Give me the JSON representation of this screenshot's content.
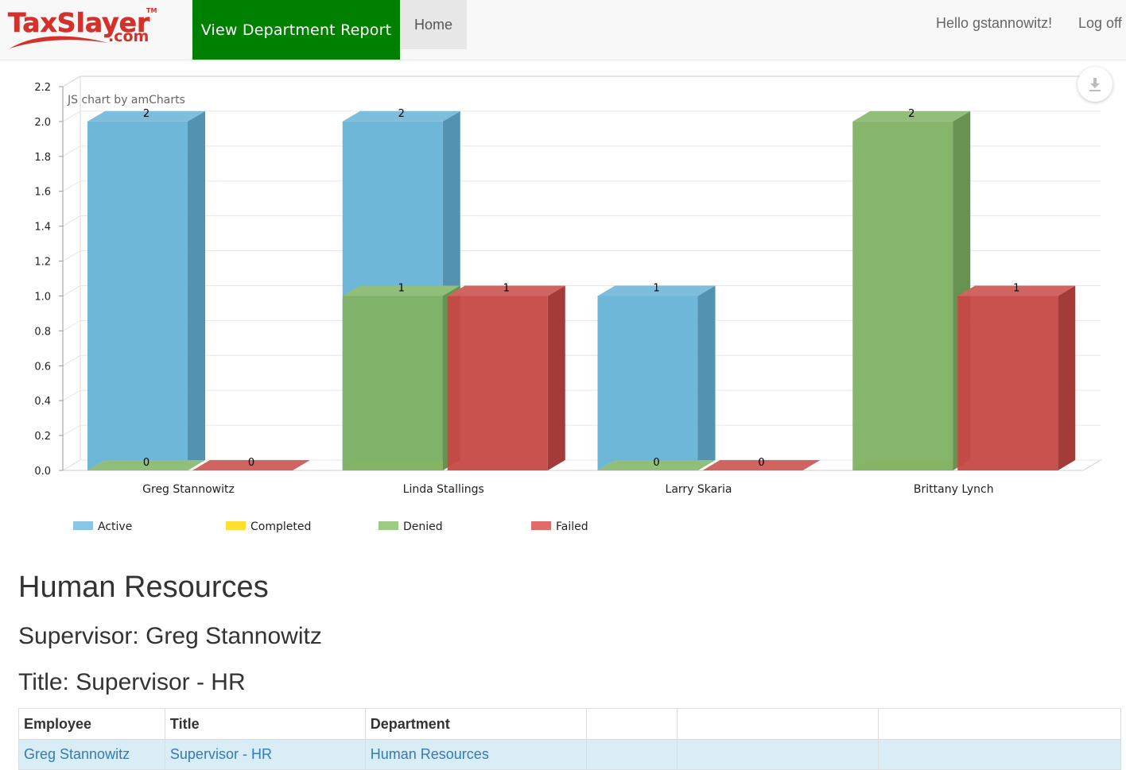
{
  "nav": {
    "brand_main": "TaxSlayer",
    "brand_tm": "TM",
    "brand_sub": ".com",
    "report_link": "View Department Report",
    "home_link": "Home",
    "greeting": "Hello gstannowitz!",
    "logoff": "Log off"
  },
  "chart_data": {
    "type": "bar",
    "watermark": "JS chart by amCharts",
    "categories": [
      "Greg Stannowitz",
      "Linda Stallings",
      "Larry Skaria",
      "Brittany Lynch"
    ],
    "series": [
      {
        "name": "Active",
        "color": "#67b3d7",
        "values": [
          2,
          2,
          1,
          0
        ]
      },
      {
        "name": "Completed",
        "color": "#fcd934",
        "values": [
          0,
          0,
          0,
          0
        ]
      },
      {
        "name": "Denied",
        "color": "#7eb263",
        "values": [
          0,
          1,
          0,
          2
        ]
      },
      {
        "name": "Failed",
        "color": "#c74944",
        "values": [
          0,
          1,
          0,
          1
        ]
      }
    ],
    "legend": [
      {
        "name": "Active",
        "color": "#8ac7e6"
      },
      {
        "name": "Completed",
        "color": "#fddf32"
      },
      {
        "name": "Denied",
        "color": "#9ccb86"
      },
      {
        "name": "Failed",
        "color": "#e06c69"
      }
    ],
    "data_labels": [
      {
        "category": 0,
        "series": "Active",
        "value": "2"
      },
      {
        "category": 0,
        "series": "Denied",
        "value": "0"
      },
      {
        "category": 0,
        "series": "Failed",
        "value": "0"
      },
      {
        "category": 1,
        "series": "Active",
        "value": "2"
      },
      {
        "category": 1,
        "series": "Denied",
        "value": "1"
      },
      {
        "category": 1,
        "series": "Failed",
        "value": "1"
      },
      {
        "category": 2,
        "series": "Active",
        "value": "1"
      },
      {
        "category": 2,
        "series": "Denied",
        "value": "0"
      },
      {
        "category": 2,
        "series": "Failed",
        "value": "0"
      },
      {
        "category": 3,
        "series": "Denied",
        "value": "2"
      },
      {
        "category": 3,
        "series": "Failed",
        "value": "1"
      }
    ],
    "ylim": [
      0,
      2.2
    ],
    "ytick_step": 0.2,
    "grid": true,
    "legend_position": "bottom-left"
  },
  "department": {
    "name": "Human Resources",
    "supervisor": "Supervisor: Greg Stannowitz",
    "title": "Title: Supervisor - HR"
  },
  "table": {
    "headers": [
      "Employee",
      "Title",
      "Department",
      "",
      "",
      ""
    ],
    "rows": [
      [
        "Greg Stannowitz",
        "Supervisor - HR",
        "Human Resources",
        "",
        "",
        ""
      ]
    ]
  }
}
